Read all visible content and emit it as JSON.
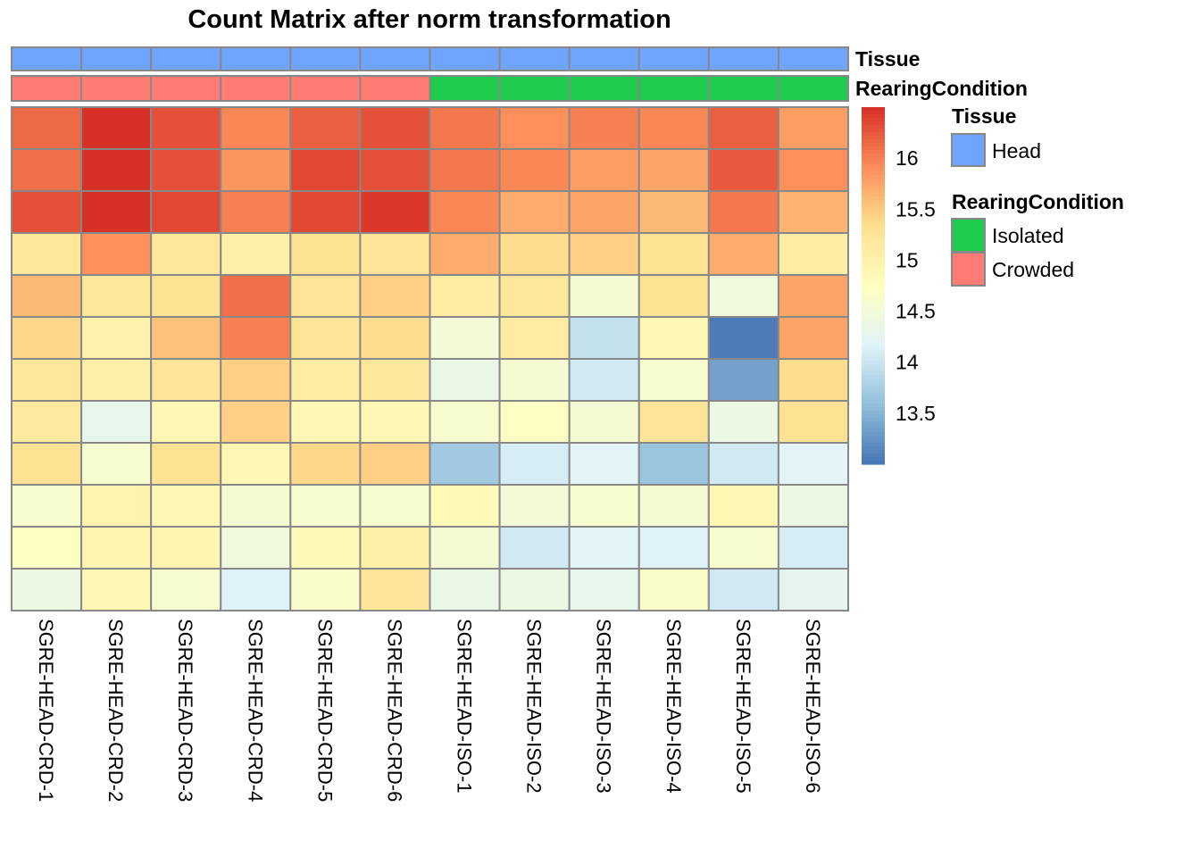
{
  "chart_data": {
    "type": "heatmap",
    "title": "Count Matrix after norm transformation",
    "columns": [
      "SGRE-HEAD-CRD-1",
      "SGRE-HEAD-CRD-2",
      "SGRE-HEAD-CRD-3",
      "SGRE-HEAD-CRD-4",
      "SGRE-HEAD-CRD-5",
      "SGRE-HEAD-CRD-6",
      "SGRE-HEAD-ISO-1",
      "SGRE-HEAD-ISO-2",
      "SGRE-HEAD-ISO-3",
      "SGRE-HEAD-ISO-4",
      "SGRE-HEAD-ISO-5",
      "SGRE-HEAD-ISO-6"
    ],
    "values": [
      [
        16.15,
        16.5,
        16.3,
        15.95,
        16.2,
        16.3,
        16.05,
        15.9,
        16.0,
        15.95,
        16.2,
        15.8
      ],
      [
        16.1,
        16.5,
        16.3,
        15.85,
        16.35,
        16.3,
        16.05,
        15.95,
        15.8,
        15.75,
        16.25,
        15.9
      ],
      [
        16.3,
        16.5,
        16.35,
        16.0,
        16.35,
        16.45,
        15.95,
        15.7,
        15.75,
        15.6,
        16.05,
        15.65
      ],
      [
        15.2,
        15.9,
        15.2,
        15.05,
        15.3,
        15.25,
        15.7,
        15.35,
        15.45,
        15.3,
        15.7,
        15.1
      ],
      [
        15.6,
        15.2,
        15.3,
        16.1,
        15.25,
        15.45,
        15.1,
        15.2,
        14.55,
        15.3,
        14.45,
        15.75
      ],
      [
        15.4,
        15.0,
        15.55,
        16.0,
        15.25,
        15.35,
        14.5,
        15.1,
        13.95,
        14.9,
        13.05,
        15.75
      ],
      [
        15.2,
        15.05,
        15.25,
        15.45,
        15.1,
        15.2,
        14.35,
        14.55,
        14.05,
        14.6,
        13.35,
        15.35
      ],
      [
        15.15,
        14.3,
        14.9,
        15.45,
        14.9,
        14.9,
        14.6,
        14.7,
        14.55,
        15.25,
        14.4,
        15.3
      ],
      [
        15.3,
        14.6,
        15.3,
        14.9,
        15.4,
        15.45,
        13.7,
        14.1,
        14.2,
        13.65,
        14.05,
        14.2
      ],
      [
        14.6,
        14.95,
        14.9,
        14.55,
        14.6,
        14.6,
        14.85,
        14.5,
        14.6,
        14.55,
        14.9,
        14.4
      ],
      [
        14.7,
        14.95,
        14.95,
        14.45,
        14.85,
        15.05,
        14.55,
        14.05,
        14.2,
        14.15,
        14.6,
        14.1
      ],
      [
        14.4,
        14.9,
        14.6,
        14.15,
        14.65,
        15.25,
        14.35,
        14.4,
        14.3,
        14.65,
        14.05,
        14.25
      ]
    ],
    "color_range": [
      13.0,
      16.5
    ],
    "colormap": [
      "#4575B4",
      "#91BFDB",
      "#E0F3F8",
      "#FFFFBF",
      "#FEE090",
      "#FC8D59",
      "#D73027"
    ],
    "colorbar_ticks": [
      16,
      15.5,
      15,
      14.5,
      14,
      13.5
    ],
    "annotations": [
      {
        "name": "Tissue",
        "values": [
          "Head",
          "Head",
          "Head",
          "Head",
          "Head",
          "Head",
          "Head",
          "Head",
          "Head",
          "Head",
          "Head",
          "Head"
        ]
      },
      {
        "name": "RearingCondition",
        "values": [
          "Crowded",
          "Crowded",
          "Crowded",
          "Crowded",
          "Crowded",
          "Crowded",
          "Isolated",
          "Isolated",
          "Isolated",
          "Isolated",
          "Isolated",
          "Isolated"
        ]
      }
    ],
    "legend": {
      "tissue_title": "Tissue",
      "tissue_items": [
        {
          "label": "Head",
          "color": "#6FA5FE"
        }
      ],
      "rearing_title": "RearingCondition",
      "rearing_items": [
        {
          "label": "Isolated",
          "color": "#1DCC4D"
        },
        {
          "label": "Crowded",
          "color": "#FE7C74"
        }
      ]
    },
    "legend_position": "right"
  }
}
